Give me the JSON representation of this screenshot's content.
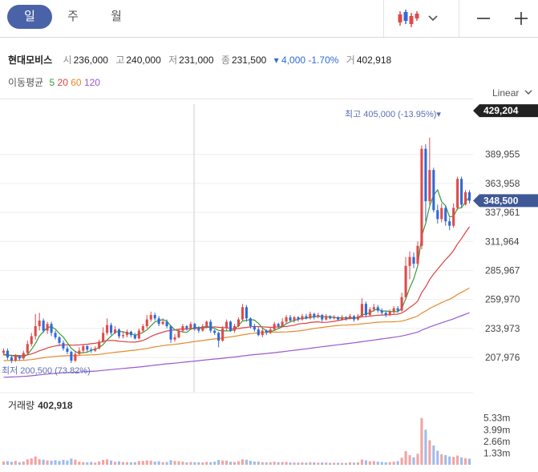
{
  "tabs": [
    {
      "label": "일",
      "active": true
    },
    {
      "label": "주",
      "active": false
    },
    {
      "label": "월",
      "active": false
    }
  ],
  "toolbar": {
    "chart_type_icon": "candlestick-icon",
    "dropdown_icon": "chevron-down-icon",
    "minus_icon": "minus-icon",
    "plus_icon": "plus-icon"
  },
  "stock": {
    "name": "현대모비스",
    "open_label": "시",
    "open": "236,000",
    "high_label": "고",
    "high": "240,000",
    "low_label": "저",
    "low": "231,000",
    "close_label": "종",
    "close": "231,500",
    "change": "▾ 4,000 -1.70%",
    "volume_label": "거",
    "volume": "402,918"
  },
  "moving_average": {
    "label": "이동평균",
    "periods": [
      {
        "label": "5",
        "color": "#3a9a3a"
      },
      {
        "label": "20",
        "color": "#e04040"
      },
      {
        "label": "60",
        "color": "#e48a2a"
      },
      {
        "label": "120",
        "color": "#9b59d0"
      }
    ]
  },
  "scale_mode": "Linear",
  "colors": {
    "up": "#e04a4a",
    "down": "#2f6ad8",
    "accent": "#4a63a8"
  },
  "chart_data": {
    "type": "candlestick",
    "price_ticks": [
      "389,955",
      "363,958",
      "337,961",
      "311,964",
      "285,967",
      "259,970",
      "233,973",
      "207,976"
    ],
    "price_tick_values": [
      389955,
      363958,
      337961,
      311964,
      285967,
      259970,
      233973,
      207976
    ],
    "ylim": [
      185000,
      435000
    ],
    "top_badge": "429,204",
    "top_badge_value": 429204,
    "current_badge": "348,500",
    "current_badge_value": 348500,
    "high_annotation": "최고 405,000 (-13.95%)▾",
    "low_annotation": "최저 200,500 (73.82%)",
    "volume_label": "거래량",
    "volume_value": "402,918",
    "volume_ticks": [
      "5.33m",
      "3.99m",
      "2.66m",
      "1.33m"
    ],
    "volume_tick_values": [
      5.33,
      3.99,
      2.66,
      1.33
    ],
    "volume_max": 6.4,
    "candles": [
      [
        212000,
        214000,
        216000,
        210000,
        0.38
      ],
      [
        214000,
        208000,
        216000,
        206000,
        0.41
      ],
      [
        208000,
        205000,
        210000,
        203000,
        0.35
      ],
      [
        205000,
        209000,
        211000,
        204000,
        0.44
      ],
      [
        209000,
        207000,
        210000,
        205000,
        0.3
      ],
      [
        207000,
        212000,
        214000,
        206000,
        0.38
      ],
      [
        212000,
        220000,
        223000,
        211000,
        0.62
      ],
      [
        220000,
        227000,
        230000,
        218000,
        0.73
      ],
      [
        227000,
        236000,
        247000,
        224000,
        0.95
      ],
      [
        236000,
        241000,
        248000,
        232000,
        0.64
      ],
      [
        241000,
        232000,
        243000,
        230000,
        0.58
      ],
      [
        232000,
        238000,
        240000,
        229000,
        0.5
      ],
      [
        238000,
        230000,
        240000,
        227000,
        0.47
      ],
      [
        230000,
        226000,
        232000,
        224000,
        0.52
      ],
      [
        226000,
        221000,
        227000,
        219000,
        0.44
      ],
      [
        221000,
        216000,
        223000,
        214000,
        0.56
      ],
      [
        216000,
        213000,
        218000,
        211000,
        0.48
      ],
      [
        213000,
        205000,
        214000,
        203000,
        0.7
      ],
      [
        205000,
        211000,
        214000,
        204000,
        0.58
      ],
      [
        211000,
        214000,
        217000,
        210000,
        0.35
      ],
      [
        214000,
        218000,
        220000,
        212000,
        0.3
      ],
      [
        218000,
        215000,
        219000,
        213000,
        0.28
      ],
      [
        215000,
        214000,
        217000,
        212000,
        0.32
      ],
      [
        214000,
        216000,
        218000,
        213000,
        0.25
      ],
      [
        216000,
        222000,
        224000,
        215000,
        0.38
      ],
      [
        222000,
        230000,
        235000,
        221000,
        0.55
      ],
      [
        230000,
        237000,
        243000,
        228000,
        0.62
      ],
      [
        237000,
        230000,
        239000,
        228000,
        0.48
      ],
      [
        230000,
        233000,
        236000,
        229000,
        0.35
      ],
      [
        233000,
        227000,
        234000,
        225000,
        0.4
      ],
      [
        227000,
        228000,
        231000,
        225000,
        0.32
      ],
      [
        228000,
        231000,
        233000,
        226000,
        0.3
      ],
      [
        231000,
        228000,
        232000,
        226000,
        0.28
      ],
      [
        228000,
        225000,
        230000,
        224000,
        0.3
      ],
      [
        225000,
        232000,
        234000,
        224000,
        0.42
      ],
      [
        232000,
        236000,
        238000,
        230000,
        0.44
      ],
      [
        236000,
        242000,
        246000,
        234000,
        0.5
      ],
      [
        242000,
        246000,
        249000,
        240000,
        0.47
      ],
      [
        246000,
        243000,
        248000,
        241000,
        0.36
      ],
      [
        243000,
        238000,
        245000,
        236000,
        0.4
      ],
      [
        238000,
        240000,
        243000,
        237000,
        0.3
      ],
      [
        240000,
        236000,
        242000,
        234000,
        0.32
      ],
      [
        236000,
        224000,
        237000,
        221000,
        0.52
      ],
      [
        224000,
        226000,
        229000,
        222000,
        0.44
      ],
      [
        226000,
        232000,
        233000,
        225000,
        0.4
      ],
      [
        232000,
        236000,
        238000,
        230000,
        0.36
      ],
      [
        236000,
        234000,
        237000,
        232000,
        0.28
      ],
      [
        234000,
        238000,
        240000,
        233000,
        0.32
      ],
      [
        238000,
        234000,
        239000,
        232000,
        0.3
      ],
      [
        234000,
        232000,
        236000,
        230000,
        0.29
      ],
      [
        232000,
        236000,
        238000,
        231000,
        0.27
      ],
      [
        236000,
        240000,
        241000,
        234000,
        0.33
      ],
      [
        240000,
        232000,
        242000,
        230000,
        0.31
      ],
      [
        232000,
        230000,
        233000,
        228000,
        0.36
      ],
      [
        230000,
        223000,
        231000,
        217000,
        0.55
      ],
      [
        223000,
        234000,
        236000,
        222000,
        0.49
      ],
      [
        234000,
        240000,
        242000,
        232000,
        0.48
      ],
      [
        240000,
        232000,
        241000,
        231000,
        0.35
      ],
      [
        232000,
        236000,
        238000,
        230000,
        0.32
      ],
      [
        236000,
        242000,
        244000,
        235000,
        0.4
      ],
      [
        242000,
        253000,
        256000,
        241000,
        0.62
      ],
      [
        253000,
        243000,
        255000,
        240000,
        0.58
      ],
      [
        243000,
        236000,
        244000,
        234000,
        0.45
      ],
      [
        236000,
        233000,
        238000,
        231000,
        0.37
      ],
      [
        233000,
        228000,
        235000,
        227000,
        0.36
      ],
      [
        228000,
        232000,
        234000,
        226000,
        0.3
      ],
      [
        232000,
        230000,
        233000,
        228000,
        0.28
      ],
      [
        230000,
        233000,
        235000,
        229000,
        0.29
      ],
      [
        233000,
        238000,
        240000,
        232000,
        0.35
      ],
      [
        238000,
        236000,
        239000,
        234000,
        0.3
      ],
      [
        236000,
        240000,
        243000,
        235000,
        0.32
      ],
      [
        240000,
        244000,
        246000,
        238000,
        0.33
      ],
      [
        244000,
        241000,
        246000,
        240000,
        0.27
      ],
      [
        241000,
        244000,
        245000,
        239000,
        0.26
      ],
      [
        244000,
        242000,
        245000,
        240000,
        0.25
      ],
      [
        242000,
        245000,
        247000,
        241000,
        0.28
      ],
      [
        245000,
        243000,
        247000,
        242000,
        0.24
      ],
      [
        243000,
        247000,
        249000,
        242000,
        0.3
      ],
      [
        247000,
        244000,
        248000,
        242000,
        0.28
      ],
      [
        244000,
        246000,
        248000,
        243000,
        0.25
      ],
      [
        246000,
        242000,
        247000,
        240000,
        0.27
      ],
      [
        242000,
        245000,
        247000,
        241000,
        0.26
      ],
      [
        245000,
        243000,
        246000,
        242000,
        0.22
      ],
      [
        243000,
        244000,
        246000,
        242000,
        0.23
      ],
      [
        244000,
        242000,
        245000,
        241000,
        0.24
      ],
      [
        242000,
        244000,
        246000,
        241000,
        0.22
      ],
      [
        244000,
        243000,
        245000,
        241000,
        0.21
      ],
      [
        243000,
        245000,
        247000,
        242000,
        0.28
      ],
      [
        245000,
        242000,
        246000,
        240000,
        0.25
      ],
      [
        242000,
        245000,
        247000,
        241000,
        0.27
      ],
      [
        245000,
        256000,
        261000,
        244000,
        0.6
      ],
      [
        256000,
        246000,
        258000,
        244000,
        0.52
      ],
      [
        246000,
        251000,
        253000,
        245000,
        0.4
      ],
      [
        251000,
        253000,
        256000,
        249000,
        0.42
      ],
      [
        253000,
        250000,
        255000,
        248000,
        0.36
      ],
      [
        250000,
        248000,
        252000,
        246000,
        0.32
      ],
      [
        248000,
        246000,
        250000,
        244000,
        0.28
      ],
      [
        246000,
        249000,
        251000,
        245000,
        0.3
      ],
      [
        249000,
        252000,
        254000,
        247000,
        0.35
      ],
      [
        252000,
        250000,
        254000,
        248000,
        0.42
      ],
      [
        250000,
        262000,
        266000,
        249000,
        0.8
      ],
      [
        262000,
        290000,
        298000,
        260000,
        1.55
      ],
      [
        290000,
        298000,
        303000,
        278000,
        1.1
      ],
      [
        298000,
        292000,
        302000,
        288000,
        0.85
      ],
      [
        292000,
        308000,
        312000,
        290000,
        1.25
      ],
      [
        308000,
        395000,
        398000,
        305000,
        5.33
      ],
      [
        395000,
        348000,
        399000,
        330000,
        3.99
      ],
      [
        348000,
        376000,
        405000,
        345000,
        2.8
      ],
      [
        376000,
        340000,
        378000,
        338000,
        2.2
      ],
      [
        340000,
        332000,
        345000,
        328000,
        1.6
      ],
      [
        332000,
        342000,
        346000,
        329000,
        1.2
      ],
      [
        342000,
        330000,
        344000,
        326000,
        1.1
      ],
      [
        330000,
        326000,
        333000,
        322000,
        0.95
      ],
      [
        326000,
        342000,
        346000,
        324000,
        0.9
      ],
      [
        342000,
        368000,
        370000,
        340000,
        1.05
      ],
      [
        368000,
        345000,
        370000,
        342000,
        0.85
      ],
      [
        345000,
        356000,
        358000,
        344000,
        0.75
      ],
      [
        356000,
        348500,
        358000,
        346000,
        0.7
      ]
    ]
  }
}
